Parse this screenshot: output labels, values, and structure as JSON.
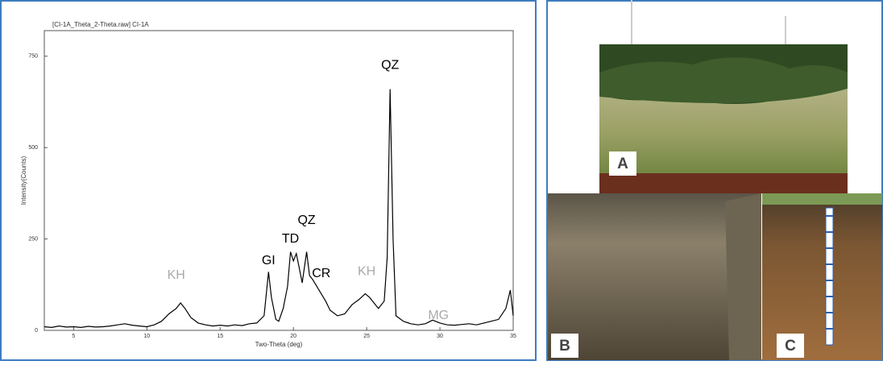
{
  "chart_data": {
    "type": "line",
    "title": "[CI-1A_Theta_2-Theta.raw] CI-1A",
    "x_label": "Two-Theta (deg)",
    "y_label": "Intensity(Counts)",
    "x": [
      3,
      3.5,
      4,
      4.5,
      5,
      5.5,
      6,
      6.5,
      7,
      7.5,
      8,
      8.5,
      9,
      9.5,
      10,
      10.5,
      11,
      11.5,
      12,
      12.3,
      12.6,
      13,
      13.5,
      14,
      14.5,
      15,
      15.5,
      16,
      16.5,
      17,
      17.5,
      18,
      18.3,
      18.5,
      18.8,
      19,
      19.3,
      19.6,
      19.8,
      20,
      20.2,
      20.4,
      20.6,
      20.9,
      21.1,
      21.3,
      21.6,
      21.9,
      22.2,
      22.5,
      23,
      23.5,
      24,
      24.5,
      24.9,
      25.2,
      25.5,
      25.8,
      26.2,
      26.4,
      26.6,
      26.8,
      27,
      27.5,
      28,
      28.5,
      29,
      29.5,
      30,
      30.5,
      31,
      31.5,
      32,
      32.5,
      33,
      33.5,
      34,
      34.5,
      34.8,
      35
    ],
    "values": [
      10,
      8,
      12,
      9,
      10,
      8,
      11,
      9,
      10,
      12,
      15,
      18,
      14,
      12,
      10,
      15,
      25,
      45,
      60,
      75,
      60,
      35,
      20,
      15,
      12,
      14,
      12,
      15,
      13,
      18,
      20,
      40,
      160,
      90,
      30,
      25,
      60,
      120,
      215,
      190,
      210,
      170,
      130,
      215,
      150,
      140,
      120,
      100,
      80,
      55,
      40,
      45,
      70,
      85,
      100,
      90,
      75,
      60,
      80,
      200,
      660,
      250,
      40,
      25,
      18,
      15,
      18,
      28,
      20,
      15,
      14,
      16,
      18,
      15,
      20,
      25,
      30,
      60,
      110,
      40
    ],
    "color": "#000000",
    "xlim": [
      3,
      35
    ],
    "ylim": [
      0,
      820
    ],
    "xticks": [
      5,
      10,
      15,
      20,
      25,
      30,
      35
    ],
    "yticks": [
      0,
      250,
      500,
      750
    ],
    "annotations": [
      {
        "text": "KH",
        "x": 12,
        "y": 150,
        "color": "#aaaaaa"
      },
      {
        "text": "GI",
        "x": 18.3,
        "y": 190,
        "color": "#000000"
      },
      {
        "text": "TD",
        "x": 19.8,
        "y": 250,
        "color": "#000000"
      },
      {
        "text": "QZ",
        "x": 20.9,
        "y": 300,
        "color": "#000000"
      },
      {
        "text": "CR",
        "x": 21.9,
        "y": 155,
        "color": "#000000"
      },
      {
        "text": "KH",
        "x": 25,
        "y": 160,
        "color": "#aaaaaa"
      },
      {
        "text": "QZ",
        "x": 26.6,
        "y": 725,
        "color": "#000000"
      },
      {
        "text": "MG",
        "x": 29.9,
        "y": 40,
        "color": "#aaaaaa"
      }
    ]
  },
  "photos": {
    "labels": [
      "A",
      "B",
      "C"
    ]
  }
}
